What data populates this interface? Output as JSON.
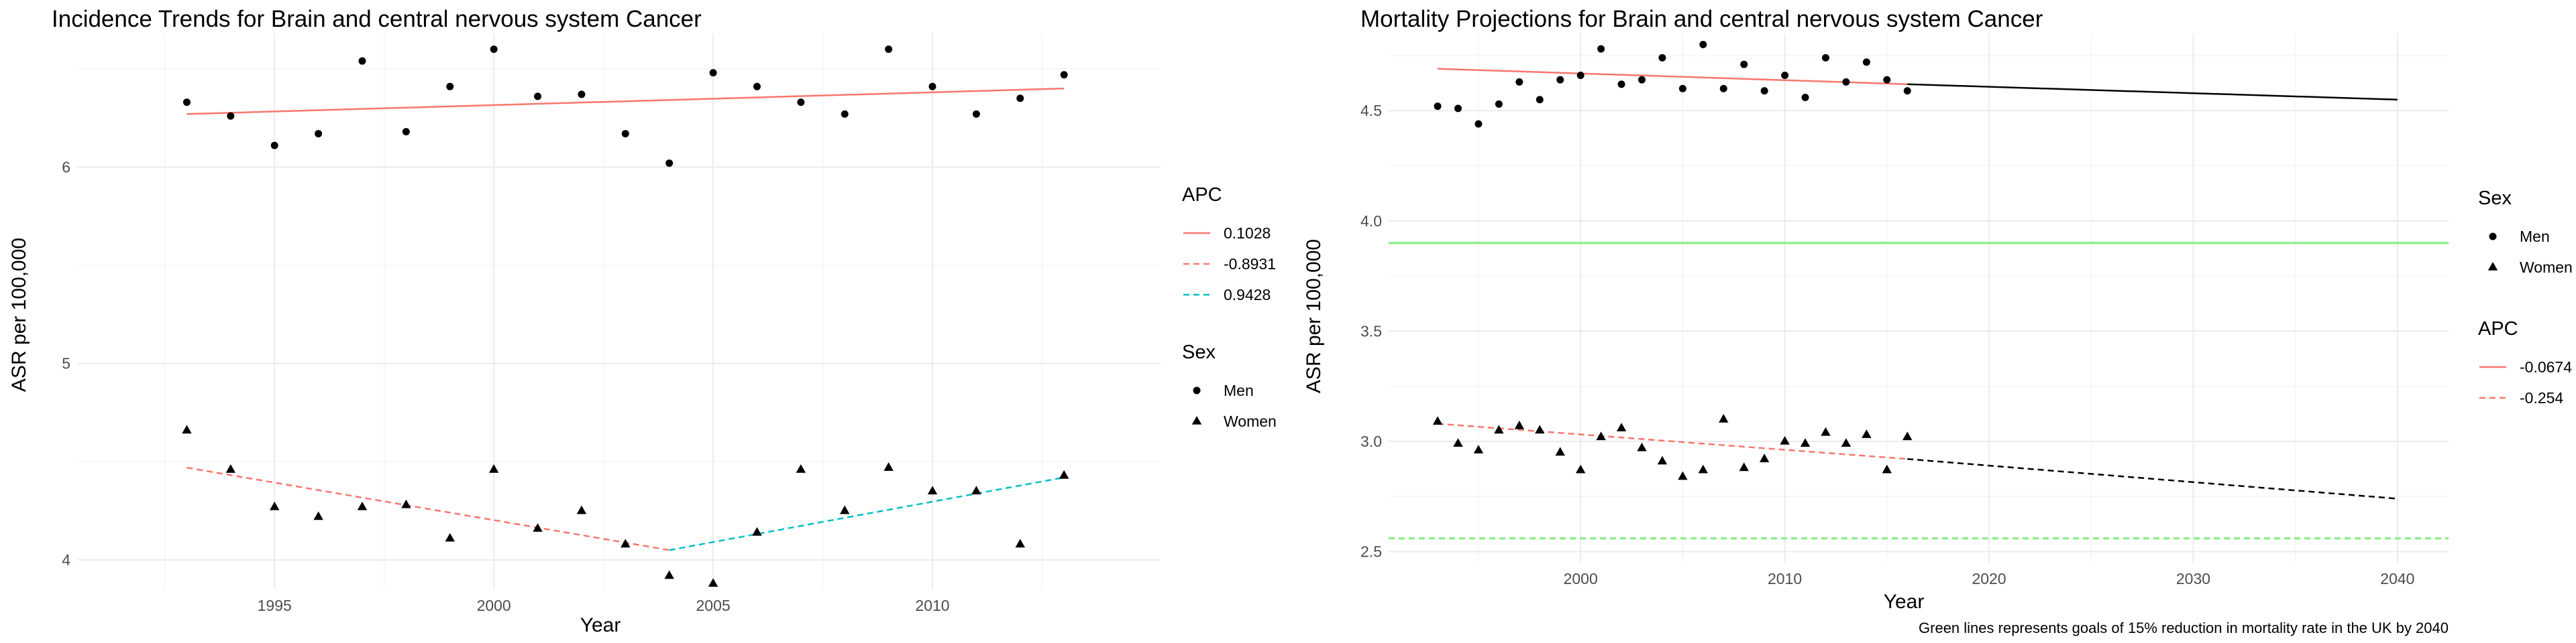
{
  "chart_data": [
    {
      "type": "scatter",
      "title": "Incidence Trends for Brain and central nervous system Cancer",
      "xlabel": "Year",
      "ylabel": "ASR per 100,000",
      "xlim": [
        1990.5,
        2015.2
      ],
      "ylim": [
        3.85,
        6.68
      ],
      "x_ticks": [
        1995,
        2000,
        2005,
        2010
      ],
      "y_ticks": [
        4,
        5,
        6
      ],
      "grid": true,
      "legends": [
        {
          "title": "APC",
          "placement": "right-top",
          "entries": [
            {
              "label": "0.1028",
              "color": "#F8766D",
              "dash": "solid"
            },
            {
              "label": "-0.8931",
              "color": "#F8766D",
              "dash": "dashed"
            },
            {
              "label": "0.9428",
              "color": "#00BFC4",
              "dash": "dashed"
            }
          ]
        },
        {
          "title": "Sex",
          "placement": "right-middle",
          "entries": [
            {
              "label": "Men",
              "shape": "circle"
            },
            {
              "label": "Women",
              "shape": "triangle"
            }
          ]
        }
      ],
      "series": [
        {
          "name": "Men",
          "shape": "circle",
          "x": [
            1993,
            1994,
            1995,
            1996,
            1997,
            1998,
            1999,
            2000,
            2001,
            2002,
            2003,
            2004,
            2005,
            2006,
            2007,
            2008,
            2009,
            2010,
            2011,
            2012,
            2013
          ],
          "y": [
            6.33,
            6.26,
            6.11,
            6.17,
            6.54,
            6.18,
            6.41,
            6.6,
            6.36,
            6.37,
            6.17,
            6.02,
            6.48,
            6.41,
            6.33,
            6.27,
            6.6,
            6.41,
            6.27,
            6.35,
            6.47
          ]
        },
        {
          "name": "Women",
          "shape": "triangle",
          "x": [
            1993,
            1994,
            1995,
            1996,
            1997,
            1998,
            1999,
            2000,
            2001,
            2002,
            2003,
            2004,
            2005,
            2006,
            2007,
            2008,
            2009,
            2010,
            2011,
            2012,
            2013
          ],
          "y": [
            4.66,
            4.46,
            4.27,
            4.22,
            4.27,
            4.28,
            4.11,
            4.46,
            4.16,
            4.25,
            4.08,
            3.92,
            3.88,
            4.14,
            4.46,
            4.25,
            4.47,
            4.35,
            4.35,
            4.08,
            4.43
          ]
        }
      ],
      "fit_lines": [
        {
          "apc": "0.1028",
          "color": "#F8766D",
          "dash": "solid",
          "x": [
            1993,
            2013
          ],
          "y": [
            6.27,
            6.4
          ]
        },
        {
          "apc": "-0.8931",
          "color": "#F8766D",
          "dash": "dashed",
          "x": [
            1993,
            2004
          ],
          "y": [
            4.47,
            4.05
          ]
        },
        {
          "apc": "0.9428",
          "color": "#00BFC4",
          "dash": "dashed",
          "x": [
            2004,
            2013
          ],
          "y": [
            4.05,
            4.42
          ]
        }
      ]
    },
    {
      "type": "scatter",
      "title": "Mortality Projections for Brain and central nervous system Cancer",
      "xlabel": "Year",
      "ylabel": "ASR per 100,000",
      "xlim": [
        1990.6,
        2042.5
      ],
      "ylim": [
        2.45,
        4.85
      ],
      "x_ticks": [
        2000,
        2010,
        2020,
        2030,
        2040
      ],
      "y_ticks": [
        2.5,
        3.0,
        3.5,
        4.0,
        4.5
      ],
      "grid": true,
      "legends": [
        {
          "title": "Sex",
          "placement": "right-top",
          "entries": [
            {
              "label": "Men",
              "shape": "circle"
            },
            {
              "label": "Women",
              "shape": "triangle"
            }
          ]
        },
        {
          "title": "APC",
          "placement": "right-middle",
          "entries": [
            {
              "label": "-0.0674",
              "color": "#F8766D",
              "dash": "solid"
            },
            {
              "label": "-0.254",
              "color": "#F8766D",
              "dash": "dashed"
            }
          ]
        }
      ],
      "series": [
        {
          "name": "Men",
          "shape": "circle",
          "x": [
            1993,
            1994,
            1995,
            1996,
            1997,
            1998,
            1999,
            2000,
            2001,
            2002,
            2003,
            2004,
            2005,
            2006,
            2007,
            2008,
            2009,
            2010,
            2011,
            2012,
            2013,
            2014,
            2015,
            2016
          ],
          "y": [
            4.52,
            4.51,
            4.44,
            4.53,
            4.63,
            4.55,
            4.64,
            4.66,
            4.78,
            4.62,
            4.64,
            4.74,
            4.6,
            4.8,
            4.6,
            4.71,
            4.59,
            4.66,
            4.56,
            4.74,
            4.63,
            4.72,
            4.64,
            4.59
          ]
        },
        {
          "name": "Women",
          "shape": "triangle",
          "x": [
            1993,
            1994,
            1995,
            1996,
            1997,
            1998,
            1999,
            2000,
            2001,
            2002,
            2003,
            2004,
            2005,
            2006,
            2007,
            2008,
            2009,
            2010,
            2011,
            2012,
            2013,
            2014,
            2015,
            2016
          ],
          "y": [
            3.09,
            2.99,
            2.96,
            3.05,
            3.07,
            3.05,
            2.95,
            2.87,
            3.02,
            3.06,
            2.97,
            2.91,
            2.84,
            2.87,
            3.1,
            2.88,
            2.92,
            3.0,
            2.99,
            3.04,
            2.99,
            3.03,
            2.87,
            3.02
          ]
        }
      ],
      "fit_lines": [
        {
          "apc": "-0.0674",
          "color": "#F8766D",
          "dash": "solid",
          "x": [
            1993,
            2016
          ],
          "y": [
            4.69,
            4.62
          ]
        },
        {
          "apc": "-0.254",
          "color": "#F8766D",
          "dash": "dashed",
          "x": [
            1993,
            2016
          ],
          "y": [
            3.08,
            2.92
          ]
        }
      ],
      "projections": [
        {
          "color": "#000000",
          "dash": "solid",
          "x": [
            2016,
            2040
          ],
          "y": [
            4.62,
            4.55
          ]
        },
        {
          "color": "#000000",
          "dash": "dashed",
          "x": [
            2016,
            2040
          ],
          "y": [
            2.92,
            2.74
          ]
        }
      ],
      "goal_lines": [
        {
          "color": "#90EE90",
          "dash": "solid",
          "y": 3.9
        },
        {
          "color": "#90EE90",
          "dash": "dashed",
          "y": 2.56
        }
      ],
      "caption": "Green lines represents goals of 15% reduction in mortality rate in the UK by 2040"
    }
  ]
}
